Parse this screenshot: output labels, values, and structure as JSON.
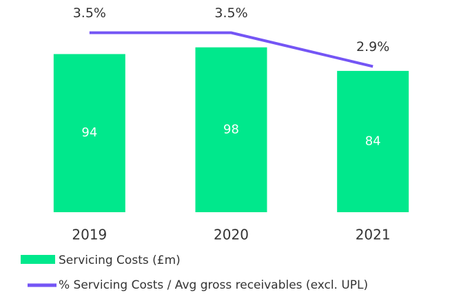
{
  "chart_data": {
    "type": "bar",
    "categories": [
      "2019",
      "2020",
      "2021"
    ],
    "series": [
      {
        "name": "Servicing Costs (£m)",
        "type": "bar",
        "color": "#00e88c",
        "values": [
          94,
          98,
          84
        ]
      },
      {
        "name": "% Servicing Costs / Avg gross receivables (excl. UPL)",
        "type": "line",
        "axis": "y2",
        "color": "#7455f5",
        "values": [
          3.5,
          3.5,
          2.9
        ],
        "value_labels": [
          "3.5%",
          "3.5%",
          "2.9%"
        ]
      }
    ],
    "ylim": [
      0,
      120
    ],
    "y2lim": [
      0.3,
      3.9
    ]
  }
}
